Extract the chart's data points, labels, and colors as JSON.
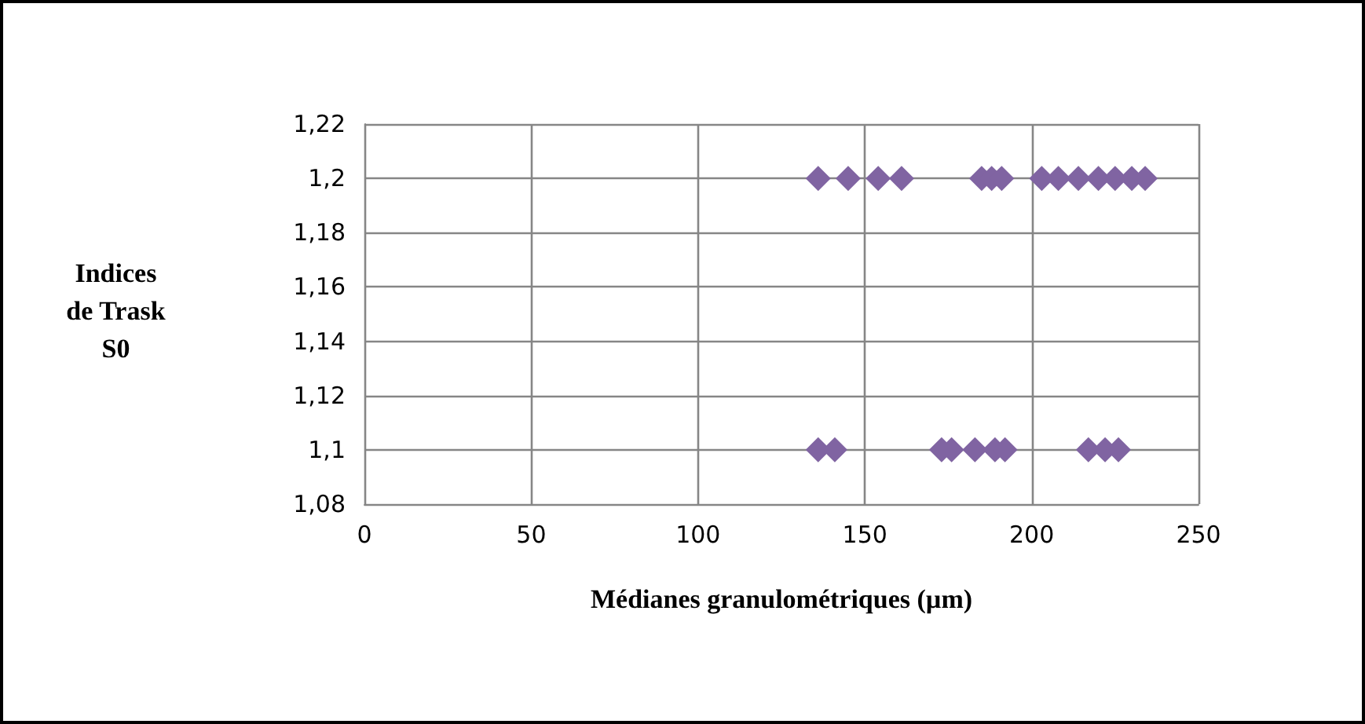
{
  "chart_data": {
    "type": "scatter",
    "xlabel": "Médianes granulométriques (µm)",
    "ylabel": "Indices\nde Trask\nS0",
    "x": [
      136,
      145,
      154,
      161,
      185,
      188,
      191,
      203,
      208,
      214,
      220,
      225,
      230,
      234,
      136,
      141,
      173,
      176,
      183,
      189,
      192,
      217,
      222,
      226
    ],
    "values": [
      1.2,
      1.2,
      1.2,
      1.2,
      1.2,
      1.2,
      1.2,
      1.2,
      1.2,
      1.2,
      1.2,
      1.2,
      1.2,
      1.2,
      1.1,
      1.1,
      1.1,
      1.1,
      1.1,
      1.1,
      1.1,
      1.1,
      1.1,
      1.1
    ],
    "color": "#8064a2",
    "marker": "diamond",
    "grid": true,
    "xlim": [
      0,
      250
    ],
    "xticks": [
      0,
      50,
      100,
      150,
      200,
      250
    ],
    "ylim": [
      1.08,
      1.22
    ],
    "yticks": [
      {
        "value": 1.08,
        "label": "1,08"
      },
      {
        "value": 1.1,
        "label": "1,1"
      },
      {
        "value": 1.12,
        "label": "1,12"
      },
      {
        "value": 1.14,
        "label": "1,14"
      },
      {
        "value": 1.16,
        "label": "1,16"
      },
      {
        "value": 1.18,
        "label": "1,18"
      },
      {
        "value": 1.2,
        "label": "1,2"
      },
      {
        "value": 1.22,
        "label": "1,22"
      }
    ]
  }
}
